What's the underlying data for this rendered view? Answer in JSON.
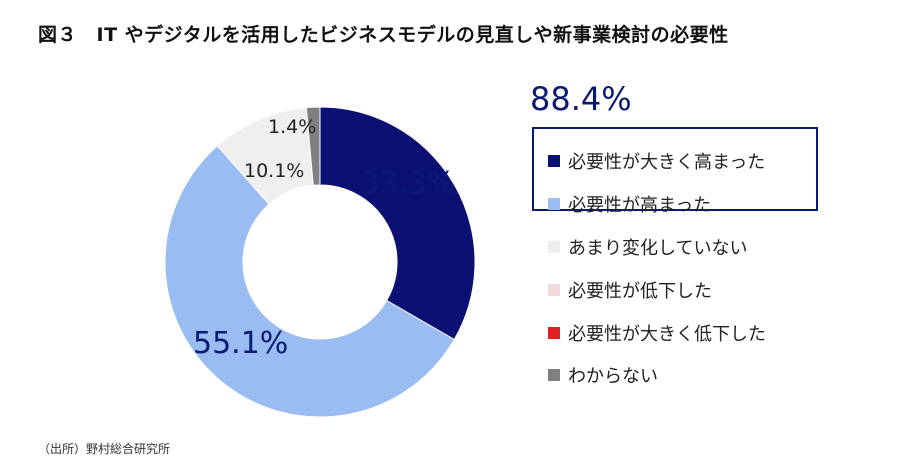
{
  "title": "図３　IT やデジタルを活用したビジネスモデルの見直しや新事業検討の必要性",
  "total_label": "88.4%",
  "source": "（出所）野村総合研究所",
  "chart_data": {
    "type": "pie",
    "donut": true,
    "title": "図３　IT やデジタルを活用したビジネスモデルの見直しや新事業検討の必要性",
    "categories": [
      "必要性が大きく高まった",
      "必要性が高まった",
      "あまり変化していない",
      "必要性が低下した",
      "必要性が大きく低下した",
      "わからない"
    ],
    "values": [
      33.3,
      55.1,
      10.1,
      0,
      0,
      1.4
    ],
    "colors": [
      "#0a1173",
      "#99bdf2",
      "#efefef",
      "#f0dada",
      "#e02020",
      "#808080"
    ],
    "data_labels": [
      "33.3%",
      "55.1%",
      "10.1%",
      "",
      "",
      "1.4%"
    ],
    "highlight_total": "88.4%",
    "legend_position": "right"
  }
}
